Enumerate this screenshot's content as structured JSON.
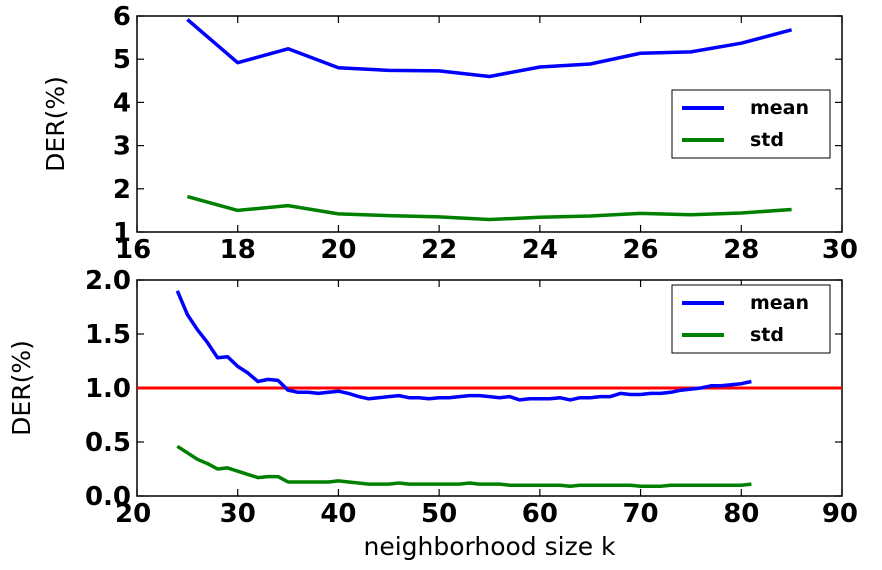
{
  "chart_data": [
    {
      "type": "line",
      "title": "",
      "xlabel": "",
      "ylabel": "DER(%)",
      "xlim": [
        16,
        30
      ],
      "ylim": [
        1,
        6
      ],
      "xticks": [
        16,
        18,
        20,
        22,
        24,
        26,
        28,
        30
      ],
      "yticks": [
        1,
        2,
        3,
        4,
        5,
        6
      ],
      "grid": false,
      "legend_position": "center-right",
      "x": [
        17,
        18,
        19,
        20,
        21,
        22,
        23,
        24,
        25,
        26,
        27,
        28,
        29
      ],
      "series": [
        {
          "name": "mean",
          "color": "#0000ff",
          "values": [
            5.92,
            4.92,
            5.24,
            4.8,
            4.74,
            4.73,
            4.6,
            4.82,
            4.89,
            5.14,
            5.17,
            5.37,
            5.68
          ]
        },
        {
          "name": "std",
          "color": "#008000",
          "values": [
            1.82,
            1.5,
            1.61,
            1.42,
            1.38,
            1.35,
            1.29,
            1.34,
            1.37,
            1.43,
            1.4,
            1.44,
            1.52
          ]
        }
      ]
    },
    {
      "type": "line",
      "title": "",
      "xlabel": "neighborhood size k",
      "ylabel": "DER(%)",
      "xlim": [
        20,
        90
      ],
      "ylim": [
        0.0,
        2.0
      ],
      "xticks": [
        20,
        30,
        40,
        50,
        60,
        70,
        80,
        90
      ],
      "yticks": [
        "0.0",
        "0.5",
        "1.0",
        "1.5",
        "2.0"
      ],
      "grid": false,
      "legend_position": "top-right",
      "reference_line": {
        "y": 1.0,
        "color": "#ff0000"
      },
      "x": [
        24,
        25,
        26,
        27,
        28,
        29,
        30,
        31,
        32,
        33,
        34,
        35,
        36,
        37,
        38,
        39,
        40,
        41,
        42,
        43,
        44,
        45,
        46,
        47,
        48,
        49,
        50,
        51,
        52,
        53,
        54,
        55,
        56,
        57,
        58,
        59,
        60,
        61,
        62,
        63,
        64,
        65,
        66,
        67,
        68,
        69,
        70,
        71,
        72,
        73,
        74,
        75,
        76,
        77,
        78,
        79,
        80,
        81
      ],
      "series": [
        {
          "name": "mean",
          "color": "#0000ff",
          "values": [
            1.9,
            1.68,
            1.54,
            1.42,
            1.28,
            1.29,
            1.2,
            1.14,
            1.06,
            1.08,
            1.07,
            0.98,
            0.96,
            0.96,
            0.95,
            0.96,
            0.97,
            0.95,
            0.92,
            0.9,
            0.91,
            0.92,
            0.93,
            0.91,
            0.91,
            0.9,
            0.91,
            0.91,
            0.92,
            0.93,
            0.93,
            0.92,
            0.91,
            0.92,
            0.89,
            0.9,
            0.9,
            0.9,
            0.91,
            0.89,
            0.91,
            0.91,
            0.92,
            0.92,
            0.95,
            0.94,
            0.94,
            0.95,
            0.95,
            0.96,
            0.98,
            0.99,
            1.0,
            1.02,
            1.02,
            1.03,
            1.04,
            1.06
          ]
        },
        {
          "name": "std",
          "color": "#008000",
          "values": [
            0.46,
            0.4,
            0.34,
            0.3,
            0.25,
            0.26,
            0.23,
            0.2,
            0.17,
            0.18,
            0.18,
            0.13,
            0.13,
            0.13,
            0.13,
            0.13,
            0.14,
            0.13,
            0.12,
            0.11,
            0.11,
            0.11,
            0.12,
            0.11,
            0.11,
            0.11,
            0.11,
            0.11,
            0.11,
            0.12,
            0.11,
            0.11,
            0.11,
            0.1,
            0.1,
            0.1,
            0.1,
            0.1,
            0.1,
            0.09,
            0.1,
            0.1,
            0.1,
            0.1,
            0.1,
            0.1,
            0.09,
            0.09,
            0.09,
            0.1,
            0.1,
            0.1,
            0.1,
            0.1,
            0.1,
            0.1,
            0.1,
            0.11
          ]
        }
      ]
    }
  ]
}
